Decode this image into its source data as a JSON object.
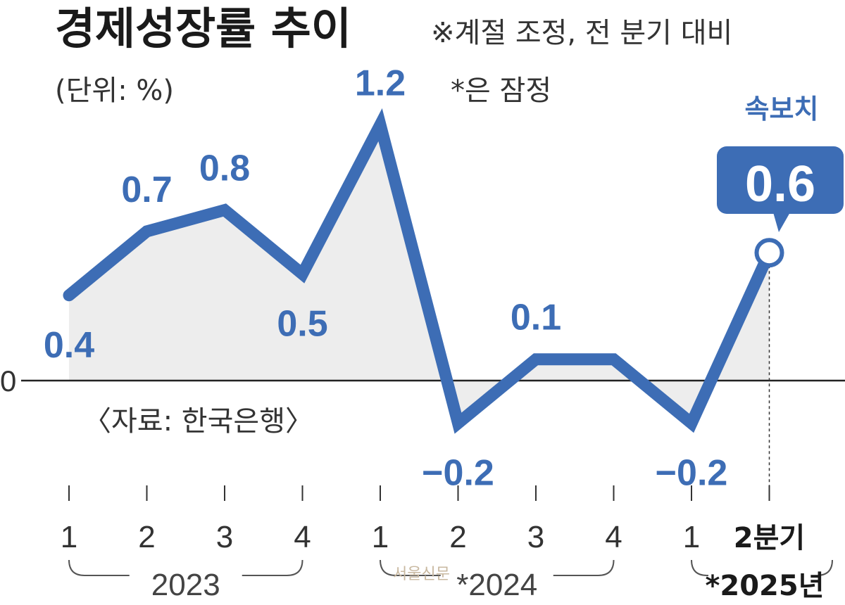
{
  "chart_data": {
    "type": "line",
    "title": "경제성장률 추이",
    "note": "※계절 조정, 전 분기 대비",
    "unit": "(단위: %)",
    "provisional_note": "*은 잠정",
    "source": "〈자료: 한국은행〉",
    "zero_label": "0",
    "categories": [
      "1",
      "2",
      "3",
      "4",
      "1",
      "2",
      "3",
      "4",
      "1",
      "2분기"
    ],
    "years": [
      "2023",
      "*2024",
      "*2025년"
    ],
    "values": [
      0.4,
      0.7,
      0.8,
      0.5,
      1.2,
      -0.2,
      0.1,
      0.1,
      -0.2,
      0.6
    ],
    "value_labels": [
      "0.4",
      "0.7",
      "0.8",
      "0.5",
      "1.2",
      "−0.2",
      "0.1",
      "",
      "−0.2",
      ""
    ],
    "highlight": {
      "label": "속보치",
      "value": "0.6"
    },
    "colors": {
      "line": "#3d6db5",
      "area": "#ededed",
      "highlight_bg": "#3d6db5"
    }
  },
  "watermark": "서울신문"
}
